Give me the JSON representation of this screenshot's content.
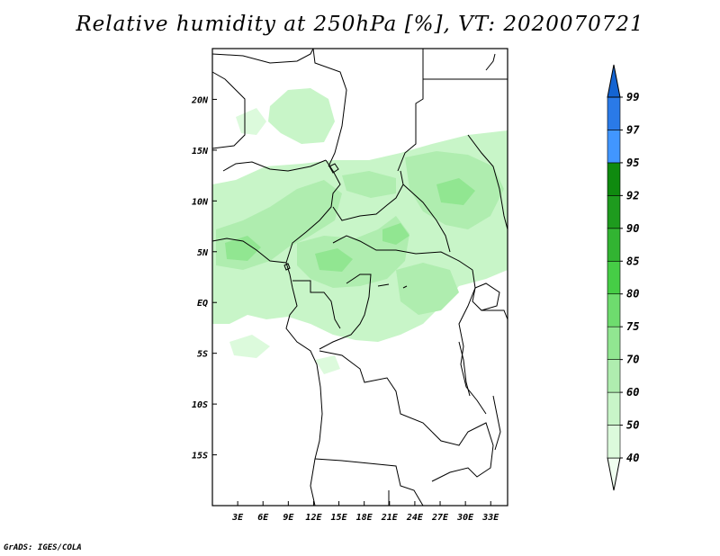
{
  "title": "Relative humidity at 250hPa [%], VT: 2020070721",
  "credit": "GrADS: IGES/COLA",
  "map": {
    "lon_range": [
      0,
      35
    ],
    "lat_range": [
      -20,
      25
    ],
    "lon_ticks": [
      {
        "value": 3,
        "label": "3E"
      },
      {
        "value": 6,
        "label": "6E"
      },
      {
        "value": 9,
        "label": "9E"
      },
      {
        "value": 12,
        "label": "12E"
      },
      {
        "value": 15,
        "label": "15E"
      },
      {
        "value": 18,
        "label": "18E"
      },
      {
        "value": 21,
        "label": "21E"
      },
      {
        "value": 24,
        "label": "24E"
      },
      {
        "value": 27,
        "label": "27E"
      },
      {
        "value": 30,
        "label": "30E"
      },
      {
        "value": 33,
        "label": "33E"
      }
    ],
    "lat_ticks": [
      {
        "value": 20,
        "label": "20N"
      },
      {
        "value": 15,
        "label": "15N"
      },
      {
        "value": 10,
        "label": "10N"
      },
      {
        "value": 5,
        "label": "5N"
      },
      {
        "value": 0,
        "label": "EQ"
      },
      {
        "value": -5,
        "label": "5S"
      },
      {
        "value": -10,
        "label": "10S"
      },
      {
        "value": -15,
        "label": "15S"
      }
    ]
  },
  "colorbar": {
    "levels": [
      "40",
      "50",
      "60",
      "70",
      "75",
      "80",
      "85",
      "90",
      "92",
      "95",
      "97",
      "99"
    ],
    "colors": [
      "#f0fff0",
      "#dcfadc",
      "#c8f5c8",
      "#afedaf",
      "#91e691",
      "#6edc6e",
      "#46cd46",
      "#32b432",
      "#1e9b1e",
      "#0f8a0f",
      "#4196ff",
      "#2a7ae8",
      "#1464d2"
    ]
  },
  "colors": {
    "rh_60_70": "#c8f5c8",
    "rh_70_75": "#afedaf",
    "rh_75_80": "#91e691",
    "border": "#000000"
  }
}
